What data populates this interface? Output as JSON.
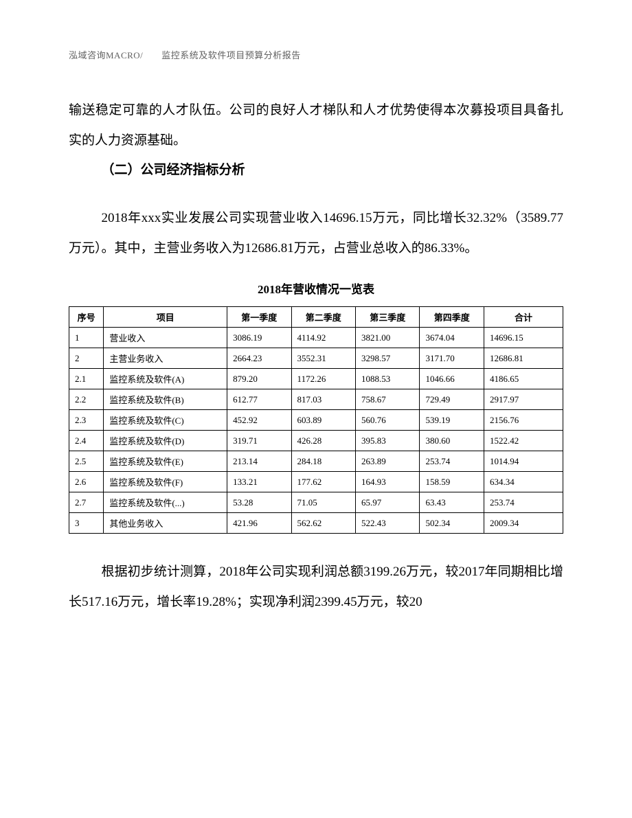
{
  "header": {
    "text": "泓域咨询MACRO/　　监控系统及软件项目预算分析报告"
  },
  "paragraphs": {
    "p1": "输送稳定可靠的人才队伍。公司的良好人才梯队和人才优势使得本次募投项目具备扎实的人力资源基础。",
    "section_heading": "（二）公司经济指标分析",
    "p2": "2018年xxx实业发展公司实现营业收入14696.15万元，同比增长32.32%（3589.77万元）。其中，主营业务收入为12686.81万元，占营业总收入的86.33%。",
    "p3": "根据初步统计测算，2018年公司实现利润总额3199.26万元，较2017年同期相比增长517.16万元，增长率19.28%；实现净利润2399.45万元，较20"
  },
  "table": {
    "title": "2018年营收情况一览表",
    "columns": [
      "序号",
      "项目",
      "第一季度",
      "第二季度",
      "第三季度",
      "第四季度",
      "合计"
    ],
    "column_widths_pct": [
      7,
      25,
      13,
      13,
      13,
      13,
      16
    ],
    "rows": [
      [
        "1",
        "营业收入",
        "3086.19",
        "4114.92",
        "3821.00",
        "3674.04",
        "14696.15"
      ],
      [
        "2",
        "主营业务收入",
        "2664.23",
        "3552.31",
        "3298.57",
        "3171.70",
        "12686.81"
      ],
      [
        "2.1",
        "监控系统及软件(A)",
        "879.20",
        "1172.26",
        "1088.53",
        "1046.66",
        "4186.65"
      ],
      [
        "2.2",
        "监控系统及软件(B)",
        "612.77",
        "817.03",
        "758.67",
        "729.49",
        "2917.97"
      ],
      [
        "2.3",
        "监控系统及软件(C)",
        "452.92",
        "603.89",
        "560.76",
        "539.19",
        "2156.76"
      ],
      [
        "2.4",
        "监控系统及软件(D)",
        "319.71",
        "426.28",
        "395.83",
        "380.60",
        "1522.42"
      ],
      [
        "2.5",
        "监控系统及软件(E)",
        "213.14",
        "284.18",
        "263.89",
        "253.74",
        "1014.94"
      ],
      [
        "2.6",
        "监控系统及软件(F)",
        "133.21",
        "177.62",
        "164.93",
        "158.59",
        "634.34"
      ],
      [
        "2.7",
        "监控系统及软件(...)",
        "53.28",
        "71.05",
        "65.97",
        "63.43",
        "253.74"
      ],
      [
        "3",
        "其他业务收入",
        "421.96",
        "562.62",
        "522.43",
        "502.34",
        "2009.34"
      ]
    ],
    "border_color": "#000000",
    "font_size_pt": 10,
    "header_font_weight": "bold"
  },
  "style": {
    "page_bg": "#ffffff",
    "text_color": "#000000",
    "header_color": "#606060",
    "body_font_size_pt": 14,
    "line_height": 2.3
  }
}
